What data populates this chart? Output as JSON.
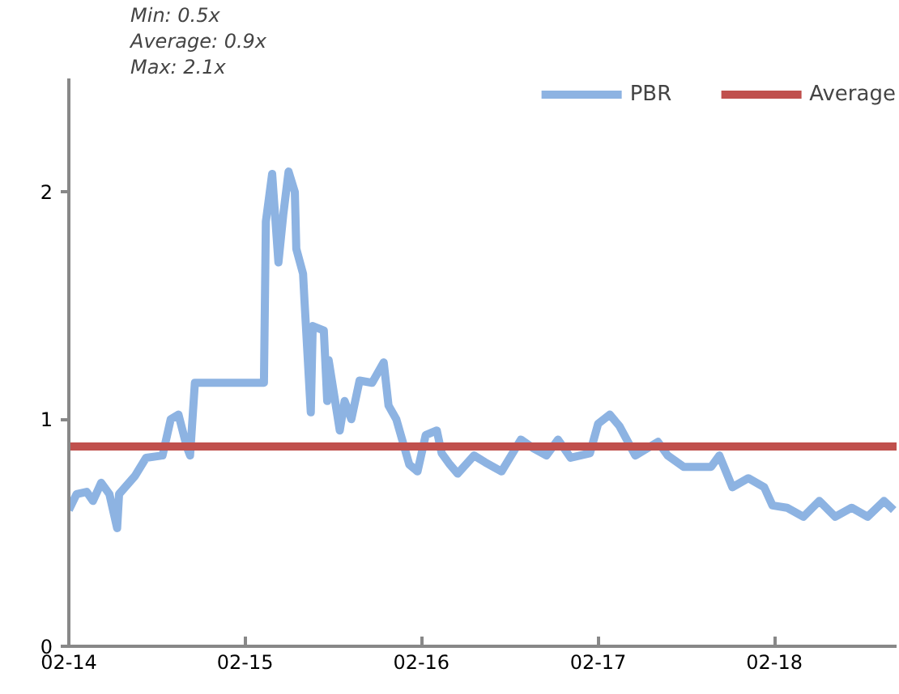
{
  "chart_data": {
    "type": "line",
    "xlim": [
      "2014-02-01",
      "2018-10-12"
    ],
    "ylim": [
      0,
      2.5
    ],
    "yticks": [
      0,
      1,
      2
    ],
    "xticks": [
      {
        "value": "2014-02-01",
        "label": "02-14"
      },
      {
        "value": "2015-02-01",
        "label": "02-15"
      },
      {
        "value": "2016-02-01",
        "label": "02-16"
      },
      {
        "value": "2017-02-01",
        "label": "02-17"
      },
      {
        "value": "2018-02-01",
        "label": "02-18"
      }
    ],
    "grid": false,
    "legend": "top right",
    "line_style": "solid",
    "annotations": [
      "Min: 0.5x",
      "Average:  0.9x",
      "Max: 2.1x"
    ],
    "series": [
      {
        "name": "PBR",
        "color": "#8db3e2",
        "x": [
          "2014-02-01",
          "2014-02-17",
          "2014-03-10",
          "2014-03-23",
          "2014-04-09",
          "2014-04-26",
          "2014-05-12",
          "2014-05-16",
          "2014-06-18",
          "2014-07-11",
          "2014-08-14",
          "2014-08-31",
          "2014-09-16",
          "2014-10-03",
          "2014-10-10",
          "2014-10-20",
          "2015-03-12",
          "2015-03-16",
          "2015-03-29",
          "2015-04-11",
          "2015-04-21",
          "2015-05-02",
          "2015-05-15",
          "2015-05-18",
          "2015-06-01",
          "2015-06-04",
          "2015-06-17",
          "2015-06-21",
          "2015-07-14",
          "2015-07-21",
          "2015-07-24",
          "2015-08-16",
          "2015-08-26",
          "2015-09-09",
          "2015-09-26",
          "2015-10-22",
          "2015-11-15",
          "2015-11-25",
          "2015-12-11",
          "2016-01-07",
          "2016-01-24",
          "2016-02-10",
          "2016-03-04",
          "2016-03-14",
          "2016-03-31",
          "2016-04-16",
          "2016-05-20",
          "2016-06-12",
          "2016-07-16",
          "2016-08-25",
          "2016-09-21",
          "2016-10-17",
          "2016-11-10",
          "2016-12-06",
          "2017-01-15",
          "2017-02-01",
          "2017-02-25",
          "2017-03-17",
          "2017-04-19",
          "2017-06-05",
          "2017-06-25",
          "2017-07-28",
          "2017-09-23",
          "2017-10-10",
          "2017-11-06",
          "2017-12-09",
          "2018-01-11",
          "2018-01-28",
          "2018-02-27",
          "2018-04-02",
          "2018-05-05",
          "2018-06-07",
          "2018-07-11",
          "2018-08-13",
          "2018-09-16",
          "2018-10-06"
        ],
        "values": [
          0.6,
          0.67,
          0.68,
          0.64,
          0.72,
          0.67,
          0.52,
          0.67,
          0.75,
          0.83,
          0.84,
          1.0,
          1.02,
          0.88,
          0.84,
          1.16,
          1.16,
          1.87,
          2.08,
          1.69,
          1.9,
          2.09,
          2.0,
          1.75,
          1.64,
          1.52,
          1.03,
          1.41,
          1.39,
          1.08,
          1.26,
          0.95,
          1.08,
          1.0,
          1.17,
          1.16,
          1.25,
          1.06,
          1.0,
          0.8,
          0.77,
          0.93,
          0.95,
          0.85,
          0.8,
          0.76,
          0.84,
          0.81,
          0.77,
          0.91,
          0.87,
          0.84,
          0.91,
          0.83,
          0.85,
          0.98,
          1.02,
          0.97,
          0.84,
          0.9,
          0.84,
          0.79,
          0.79,
          0.84,
          0.7,
          0.74,
          0.7,
          0.62,
          0.61,
          0.57,
          0.64,
          0.57,
          0.61,
          0.57,
          0.64,
          0.6
        ]
      },
      {
        "name": "Average",
        "color": "#c0504d",
        "x": [
          "2014-02-01",
          "2018-10-12"
        ],
        "values": [
          0.88,
          0.88
        ]
      }
    ]
  }
}
